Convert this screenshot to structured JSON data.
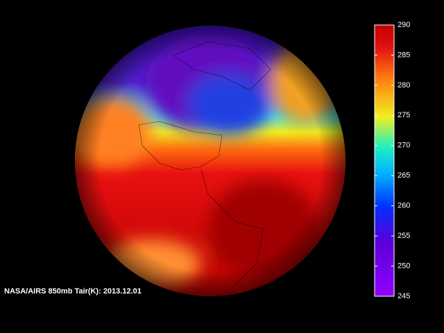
{
  "caption": "NASA/AIRS 850mb Tair(K): 2013.12.01",
  "colorbar": {
    "lim": [
      245,
      290
    ],
    "ticks": [
      245,
      250,
      255,
      260,
      265,
      270,
      275,
      280,
      285,
      290
    ]
  }
}
